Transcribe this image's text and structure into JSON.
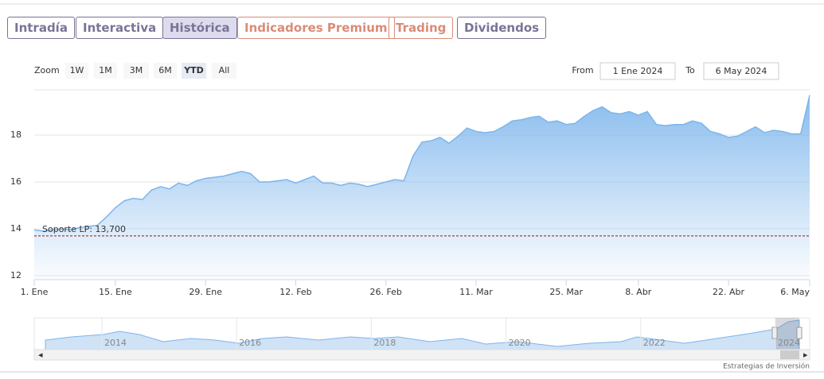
{
  "tabs": [
    {
      "label": "Intradía",
      "color": "#7b7396"
    },
    {
      "label": "Interactiva",
      "color": "#7b7396"
    },
    {
      "label": "Histórica",
      "color": "#7b7396"
    },
    {
      "label": "Indicadores Premium",
      "color": "#d98c78"
    },
    {
      "label": "Trading",
      "color": "#d98c78"
    },
    {
      "label": "Dividendos",
      "color": "#7b7396"
    }
  ],
  "selected_tab": 2,
  "zoom": {
    "label": "Zoom",
    "buttons": [
      "1W",
      "1M",
      "3M",
      "6M",
      "YTD",
      "All"
    ],
    "selected": 4
  },
  "range": {
    "from_label": "From",
    "from": "1 Ene 2024",
    "to_label": "To",
    "to": "6 May 2024"
  },
  "chart_data": {
    "type": "area",
    "color": "#7cb5ec",
    "categories": [
      "1. Ene",
      null,
      null,
      null,
      null,
      null,
      null,
      null,
      null,
      "15. Ene",
      null,
      null,
      null,
      null,
      null,
      null,
      null,
      null,
      null,
      "29. Ene",
      null,
      null,
      null,
      null,
      null,
      null,
      null,
      null,
      null,
      "12. Feb",
      null,
      null,
      null,
      null,
      null,
      null,
      null,
      null,
      null,
      "26. Feb",
      null,
      null,
      null,
      null,
      null,
      null,
      null,
      null,
      null,
      "11. Mar",
      null,
      null,
      null,
      null,
      null,
      null,
      null,
      null,
      null,
      "25. Mar",
      null,
      null,
      null,
      null,
      null,
      null,
      null,
      "8. Abr",
      null,
      null,
      null,
      null,
      null,
      null,
      null,
      null,
      null,
      "22. Abr",
      null,
      null,
      null,
      null,
      null,
      null,
      null,
      null,
      "6. May"
    ],
    "values": [
      13.95,
      13.9,
      13.95,
      14.0,
      13.95,
      14.05,
      14.1,
      14.15,
      14.5,
      14.9,
      15.2,
      15.3,
      15.25,
      15.65,
      15.8,
      15.7,
      15.95,
      15.85,
      16.05,
      16.15,
      16.2,
      16.25,
      16.35,
      16.45,
      16.35,
      16.0,
      16.0,
      16.05,
      16.1,
      15.95,
      16.1,
      16.25,
      15.95,
      15.95,
      15.85,
      15.95,
      15.9,
      15.8,
      15.9,
      16.0,
      16.1,
      16.05,
      17.1,
      17.7,
      17.75,
      17.9,
      17.65,
      17.95,
      18.3,
      18.15,
      18.1,
      18.15,
      18.35,
      18.6,
      18.65,
      18.75,
      18.8,
      18.55,
      18.6,
      18.45,
      18.5,
      18.8,
      19.05,
      19.2,
      18.95,
      18.9,
      19.0,
      18.85,
      19.0,
      18.45,
      18.4,
      18.45,
      18.45,
      18.6,
      18.5,
      18.15,
      18.05,
      17.9,
      17.95,
      18.15,
      18.35,
      18.1,
      18.2,
      18.15,
      18.05,
      18.05,
      19.7
    ],
    "ylim": [
      11.83,
      19.93
    ],
    "yticks": [
      12,
      14,
      16,
      18
    ],
    "grid": true,
    "plot_line": {
      "value": 13.7,
      "label": "Soporte LP: 13,700",
      "color": "#8b1a1a"
    }
  },
  "navigator": {
    "labels": [
      "2014",
      "2016",
      "2018",
      "2020",
      "2022",
      "2024"
    ]
  },
  "credits": "Estrategias de Inversión"
}
